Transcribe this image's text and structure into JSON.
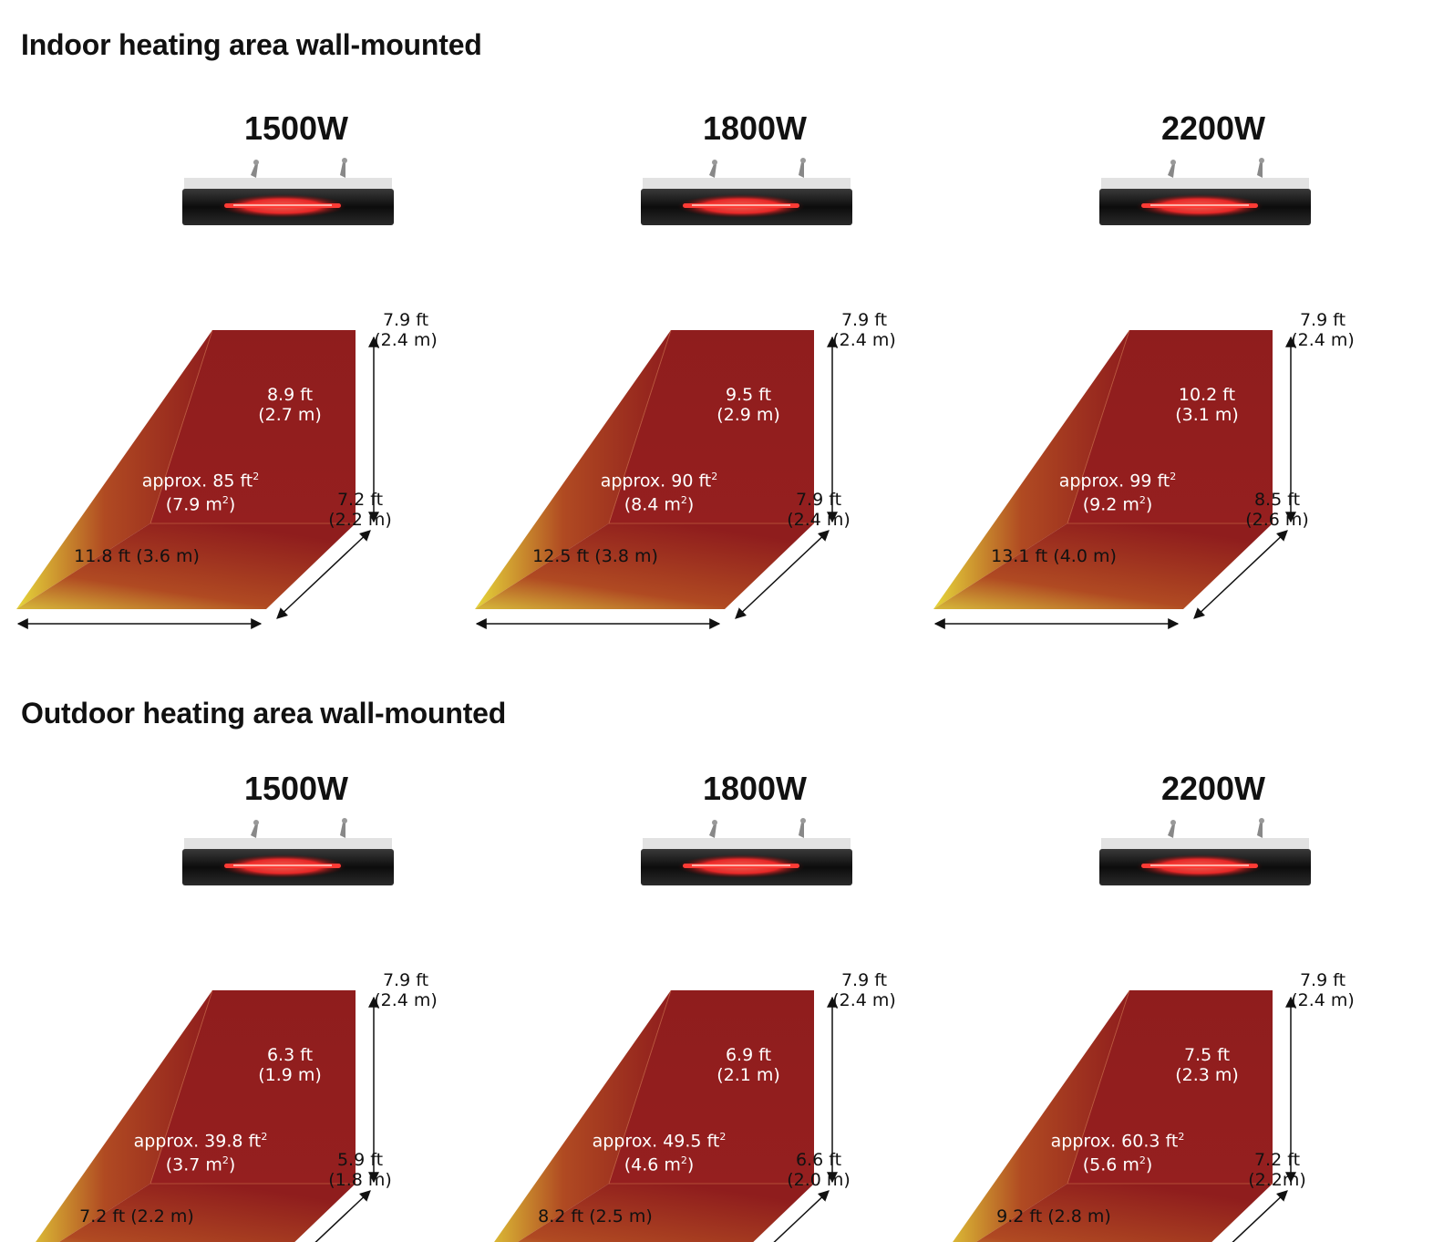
{
  "colors": {
    "heat_red": "#8f1d1d",
    "heat_yellow": "#e6d63a",
    "element_glow": "#ff2a2a",
    "arrow": "#111111"
  },
  "sections": [
    {
      "title": "Indoor heating area wall-mounted",
      "items": [
        {
          "watt": "1500W",
          "height": [
            "7.9 ft",
            "(2.4 m)"
          ],
          "depth": [
            "8.9 ft",
            "(2.7 m)"
          ],
          "area": [
            "approx. 85 ft",
            "(7.9 m",
            ")"
          ],
          "right_width": [
            "7.2 ft",
            "(2.2 m)"
          ],
          "bottom_width": "11.8 ft (3.6 m)"
        },
        {
          "watt": "1800W",
          "height": [
            "7.9 ft",
            "(2.4 m)"
          ],
          "depth": [
            "9.5 ft",
            "(2.9 m)"
          ],
          "area": [
            "approx. 90 ft",
            "(8.4 m",
            ")"
          ],
          "right_width": [
            "7.9 ft",
            "(2.4 m)"
          ],
          "bottom_width": "12.5 ft (3.8 m)"
        },
        {
          "watt": "2200W",
          "height": [
            "7.9 ft",
            "(2.4 m)"
          ],
          "depth": [
            "10.2 ft",
            "(3.1 m)"
          ],
          "area": [
            "approx. 99 ft",
            "(9.2 m",
            ")"
          ],
          "right_width": [
            "8.5 ft",
            "(2.6 m)"
          ],
          "bottom_width": "13.1 ft (4.0 m)"
        }
      ]
    },
    {
      "title": "Outdoor heating area wall-mounted",
      "items": [
        {
          "watt": "1500W",
          "height": [
            "7.9 ft",
            "(2.4 m)"
          ],
          "depth": [
            "6.3 ft",
            "(1.9 m)"
          ],
          "area": [
            "approx. 39.8 ft",
            "(3.7 m",
            ")"
          ],
          "right_width": [
            "5.9 ft",
            "(1.8 m)"
          ],
          "bottom_width": "7.2 ft (2.2 m)"
        },
        {
          "watt": "1800W",
          "height": [
            "7.9 ft",
            "(2.4 m)"
          ],
          "depth": [
            "6.9 ft",
            "(2.1 m)"
          ],
          "area": [
            "approx. 49.5 ft",
            "(4.6 m",
            ")"
          ],
          "right_width": [
            "6.6 ft",
            "(2.0 m)"
          ],
          "bottom_width": "8.2 ft (2.5 m)"
        },
        {
          "watt": "2200W",
          "height": [
            "7.9 ft",
            "(2.4 m)"
          ],
          "depth": [
            "7.5 ft",
            "(2.3 m)"
          ],
          "area": [
            "approx. 60.3 ft",
            "(5.6 m",
            ")"
          ],
          "right_width": [
            "7.2 ft",
            "(2.2m)"
          ],
          "bottom_width": "9.2 ft (2.8 m)"
        }
      ]
    }
  ]
}
